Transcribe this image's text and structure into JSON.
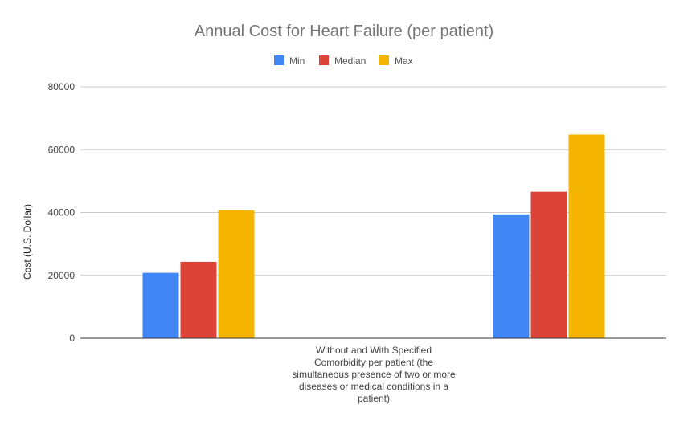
{
  "chart_data": {
    "type": "bar",
    "title": "Annual Cost for Heart Failure (per patient)",
    "ylabel": "Cost (U.S. Dollar)",
    "xlabel": "",
    "category_label_lines": [
      "Without and With Specified",
      "Comorbidity per patient (the",
      "simultaneous presence of two or more",
      "diseases or medical conditions in a",
      "patient)"
    ],
    "groups": 2,
    "ylim": [
      0,
      80000
    ],
    "yticks": [
      0,
      20000,
      40000,
      60000,
      80000
    ],
    "yticklabels": [
      "0",
      "20000",
      "40000",
      "60000",
      "80000"
    ],
    "grid": true,
    "legend_position": "top",
    "series": [
      {
        "name": "Min",
        "color": "#4285f4",
        "values": [
          20800,
          39400
        ]
      },
      {
        "name": "Median",
        "color": "#db4437",
        "values": [
          24300,
          46600
        ]
      },
      {
        "name": "Max",
        "color": "#f4b400",
        "values": [
          40700,
          64800
        ]
      }
    ]
  }
}
